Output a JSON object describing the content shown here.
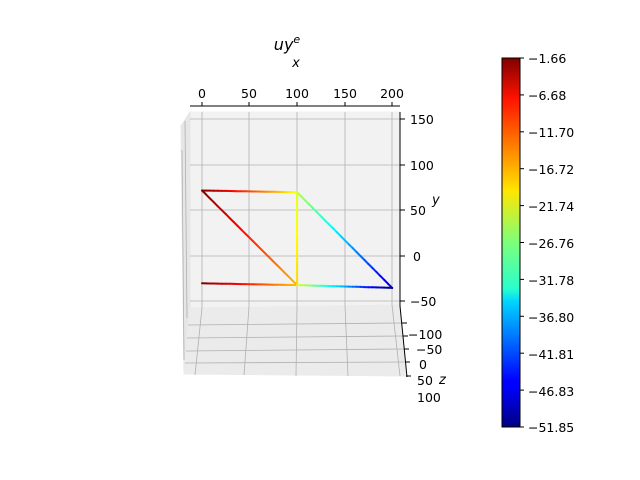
{
  "chart_data": {
    "type": "line",
    "projection": "3d",
    "title": "uy",
    "title_superscript": "e",
    "xlabel": "x",
    "ylabel": "y",
    "zlabel": "z",
    "x_ticks": [
      "0",
      "50",
      "100",
      "150",
      "200"
    ],
    "y_ticks": [
      "150",
      "100",
      "50",
      "0",
      "−50"
    ],
    "z_ticks": [
      "−100",
      "−50",
      "0",
      "50",
      "100"
    ],
    "xlim": [
      -10,
      210
    ],
    "ylim": [
      -60,
      160
    ],
    "grid": true,
    "colormap": "jet",
    "colorbar": {
      "min": -51.85,
      "max": -1.66,
      "placement": "right",
      "ticks": [
        "−1.66",
        "−6.68",
        "−11.70",
        "−16.72",
        "−21.74",
        "−26.76",
        "−31.78",
        "−36.80",
        "−41.81",
        "−46.83",
        "−51.85"
      ]
    },
    "segments": [
      {
        "from": [
          0,
          72
        ],
        "to": [
          100,
          70
        ],
        "values": [
          -1.66,
          -21.0
        ]
      },
      {
        "from": [
          100,
          70
        ],
        "to": [
          200,
          -35
        ],
        "values": [
          -24.0,
          -48.0
        ]
      },
      {
        "from": [
          0,
          72
        ],
        "to": [
          100,
          -32
        ],
        "values": [
          -1.66,
          -17.0
        ]
      },
      {
        "from": [
          100,
          70
        ],
        "to": [
          100,
          -32
        ],
        "values": [
          -22.0,
          -18.5
        ]
      },
      {
        "from": [
          0,
          -30
        ],
        "to": [
          100,
          -32
        ],
        "values": [
          -1.66,
          -17.5
        ]
      },
      {
        "from": [
          100,
          -32
        ],
        "to": [
          200,
          -35
        ],
        "values": [
          -22.0,
          -51.85
        ]
      }
    ]
  }
}
